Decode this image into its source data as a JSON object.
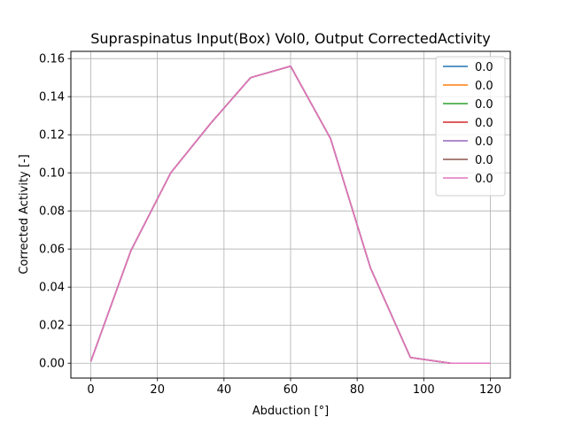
{
  "chart_data": {
    "type": "line",
    "title": "Supraspinatus Input(Box) Vol0, Output CorrectedActivity",
    "xlabel": "Abduction [°]",
    "ylabel": "Corrected Activity [-]",
    "xlim": [
      -6,
      126
    ],
    "ylim": [
      -0.0078,
      0.1638
    ],
    "xticks": [
      "0",
      "20",
      "40",
      "60",
      "80",
      "100",
      "120"
    ],
    "yticks": [
      "0.00",
      "0.02",
      "0.04",
      "0.06",
      "0.08",
      "0.10",
      "0.12",
      "0.14",
      "0.16"
    ],
    "grid": true,
    "legend_position": "top-right",
    "x": [
      0,
      12,
      24,
      36,
      48,
      60,
      72,
      84,
      96,
      108,
      120
    ],
    "series": [
      {
        "name": "0.0",
        "color": "#1f77b4",
        "values": [
          0.001,
          0.059,
          0.1,
          0.126,
          0.15,
          0.156,
          0.118,
          0.05,
          0.003,
          0.0,
          0.0
        ]
      },
      {
        "name": "0.0",
        "color": "#ff7f0e",
        "values": [
          0.001,
          0.059,
          0.1,
          0.126,
          0.15,
          0.156,
          0.118,
          0.05,
          0.003,
          0.0,
          0.0
        ]
      },
      {
        "name": "0.0",
        "color": "#2ca02c",
        "values": [
          0.001,
          0.059,
          0.1,
          0.126,
          0.15,
          0.156,
          0.118,
          0.05,
          0.003,
          0.0,
          0.0
        ]
      },
      {
        "name": "0.0",
        "color": "#d62728",
        "values": [
          0.001,
          0.059,
          0.1,
          0.126,
          0.15,
          0.156,
          0.118,
          0.05,
          0.003,
          0.0,
          0.0
        ]
      },
      {
        "name": "0.0",
        "color": "#9467bd",
        "values": [
          0.001,
          0.059,
          0.1,
          0.126,
          0.15,
          0.156,
          0.118,
          0.05,
          0.003,
          0.0,
          0.0
        ]
      },
      {
        "name": "0.0",
        "color": "#8c564b",
        "values": [
          0.001,
          0.059,
          0.1,
          0.126,
          0.15,
          0.156,
          0.118,
          0.05,
          0.003,
          0.0,
          0.0
        ]
      },
      {
        "name": "0.0",
        "color": "#e377c2",
        "values": [
          0.001,
          0.059,
          0.1,
          0.126,
          0.15,
          0.156,
          0.118,
          0.05,
          0.003,
          0.0,
          0.0
        ]
      }
    ]
  }
}
